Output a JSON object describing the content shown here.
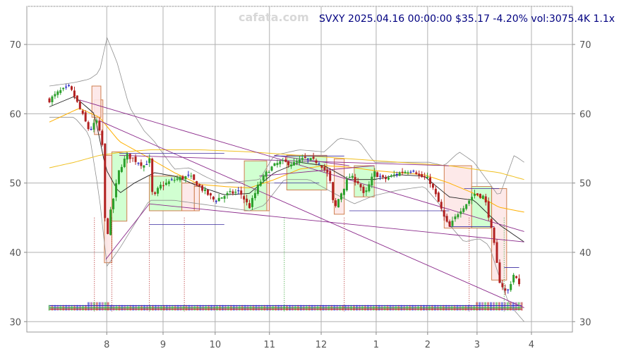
{
  "chart_data": {
    "type": "candlestick",
    "title": "SVXY 2025.04.16 00:00:00 $35.17 -4.20% vol:3075.4K 1.1x",
    "watermark": "cafata.com",
    "ylim": [
      28.5,
      75.5
    ],
    "y_ticks": [
      30,
      40,
      50,
      60,
      70
    ],
    "y_tick_labels": [
      "30",
      "40",
      "50",
      "60",
      "70"
    ],
    "x_ticks": [
      {
        "label": "8",
        "pos": 0.1465
      },
      {
        "label": "9",
        "pos": 0.2497
      },
      {
        "label": "10",
        "pos": 0.3452
      },
      {
        "label": "11",
        "pos": 0.4447
      },
      {
        "label": "12",
        "pos": 0.5395
      },
      {
        "label": "1",
        "pos": 0.6403
      },
      {
        "label": "2",
        "pos": 0.7346
      },
      {
        "label": "3",
        "pos": 0.8252
      },
      {
        "label": "4",
        "pos": 0.9249
      }
    ],
    "close_anchors": [
      [
        0,
        62.0
      ],
      [
        0.02,
        63.2
      ],
      [
        0.04,
        63.8
      ],
      [
        0.05,
        62.5
      ],
      [
        0.065,
        60.0
      ],
      [
        0.08,
        57.5
      ],
      [
        0.095,
        59.0
      ],
      [
        0.107,
        55.0
      ],
      [
        0.113,
        40.5
      ],
      [
        0.12,
        45.0
      ],
      [
        0.14,
        52.0
      ],
      [
        0.155,
        54.0
      ],
      [
        0.19,
        52.5
      ],
      [
        0.2,
        53.5
      ],
      [
        0.207,
        47.5
      ],
      [
        0.22,
        49.5
      ],
      [
        0.25,
        50.5
      ],
      [
        0.28,
        51.0
      ],
      [
        0.3,
        49.5
      ],
      [
        0.33,
        47.5
      ],
      [
        0.36,
        48.5
      ],
      [
        0.38,
        48.8
      ],
      [
        0.4,
        46.5
      ],
      [
        0.42,
        50.0
      ],
      [
        0.44,
        52.0
      ],
      [
        0.46,
        53.0
      ],
      [
        0.49,
        52.8
      ],
      [
        0.51,
        53.5
      ],
      [
        0.54,
        53.0
      ],
      [
        0.56,
        51.0
      ],
      [
        0.57,
        46.0
      ],
      [
        0.58,
        48.0
      ],
      [
        0.6,
        51.0
      ],
      [
        0.62,
        50.0
      ],
      [
        0.63,
        48.0
      ],
      [
        0.65,
        51.5
      ],
      [
        0.67,
        50.5
      ],
      [
        0.7,
        51.5
      ],
      [
        0.73,
        52.0
      ],
      [
        0.74,
        51.0
      ],
      [
        0.76,
        50.5
      ],
      [
        0.78,
        47.0
      ],
      [
        0.79,
        45.0
      ],
      [
        0.8,
        43.5
      ],
      [
        0.82,
        46.0
      ],
      [
        0.84,
        47.5
      ],
      [
        0.85,
        48.5
      ],
      [
        0.87,
        48.0
      ],
      [
        0.88,
        45.0
      ],
      [
        0.89,
        41.0
      ],
      [
        0.9,
        36.0
      ],
      [
        0.915,
        34.0
      ],
      [
        0.93,
        37.0
      ],
      [
        0.94,
        35.17
      ]
    ],
    "ma_fast_anchors": [
      [
        0,
        61.0
      ],
      [
        0.05,
        62.5
      ],
      [
        0.09,
        60.0
      ],
      [
        0.113,
        52.0
      ],
      [
        0.14,
        48.5
      ],
      [
        0.17,
        50.0
      ],
      [
        0.21,
        51.5
      ],
      [
        0.25,
        51.0
      ],
      [
        0.3,
        49.5
      ],
      [
        0.35,
        48.3
      ],
      [
        0.4,
        48.5
      ],
      [
        0.45,
        51.5
      ],
      [
        0.5,
        53.0
      ],
      [
        0.55,
        52.5
      ],
      [
        0.6,
        50.5
      ],
      [
        0.65,
        50.5
      ],
      [
        0.7,
        51.2
      ],
      [
        0.75,
        51.0
      ],
      [
        0.8,
        48.0
      ],
      [
        0.85,
        47.5
      ],
      [
        0.9,
        44.0
      ],
      [
        0.95,
        41.5
      ]
    ],
    "ma_mid_anchors": [
      [
        0,
        58.8
      ],
      [
        0.06,
        60.8
      ],
      [
        0.1,
        59.5
      ],
      [
        0.14,
        56.0
      ],
      [
        0.19,
        54.0
      ],
      [
        0.25,
        51.5
      ],
      [
        0.3,
        49.8
      ],
      [
        0.35,
        49.5
      ],
      [
        0.4,
        49.3
      ],
      [
        0.45,
        50.5
      ],
      [
        0.5,
        52.0
      ],
      [
        0.55,
        52.5
      ],
      [
        0.6,
        52.3
      ],
      [
        0.65,
        51.8
      ],
      [
        0.7,
        51.5
      ],
      [
        0.75,
        51.2
      ],
      [
        0.8,
        50.0
      ],
      [
        0.85,
        48.5
      ],
      [
        0.9,
        46.5
      ],
      [
        0.95,
        45.8
      ]
    ],
    "ma_slow_anchors": [
      [
        0,
        52.2
      ],
      [
        0.05,
        53.0
      ],
      [
        0.1,
        54.0
      ],
      [
        0.15,
        54.5
      ],
      [
        0.2,
        54.8
      ],
      [
        0.3,
        54.8
      ],
      [
        0.4,
        54.5
      ],
      [
        0.5,
        54.0
      ],
      [
        0.6,
        53.5
      ],
      [
        0.7,
        53.0
      ],
      [
        0.8,
        52.5
      ],
      [
        0.9,
        51.5
      ],
      [
        0.95,
        50.5
      ]
    ],
    "band_upper_anchors": [
      [
        0,
        64.0
      ],
      [
        0.05,
        64.5
      ],
      [
        0.08,
        65.0
      ],
      [
        0.1,
        66.0
      ],
      [
        0.115,
        71.0
      ],
      [
        0.135,
        67.5
      ],
      [
        0.16,
        61.0
      ],
      [
        0.19,
        57.5
      ],
      [
        0.21,
        56.0
      ],
      [
        0.23,
        54.0
      ],
      [
        0.25,
        52.0
      ],
      [
        0.28,
        52.2
      ],
      [
        0.31,
        51.0
      ],
      [
        0.34,
        50.0
      ],
      [
        0.38,
        50.2
      ],
      [
        0.42,
        50.5
      ],
      [
        0.45,
        54.0
      ],
      [
        0.5,
        54.8
      ],
      [
        0.55,
        54.5
      ],
      [
        0.58,
        56.5
      ],
      [
        0.62,
        56.0
      ],
      [
        0.65,
        53.0
      ],
      [
        0.7,
        53.0
      ],
      [
        0.76,
        53.0
      ],
      [
        0.79,
        52.5
      ],
      [
        0.82,
        54.5
      ],
      [
        0.85,
        53.0
      ],
      [
        0.88,
        50.0
      ],
      [
        0.9,
        48.0
      ],
      [
        0.93,
        54.0
      ],
      [
        0.95,
        53.0
      ]
    ],
    "band_lower_anchors": [
      [
        0,
        59.5
      ],
      [
        0.05,
        59.5
      ],
      [
        0.08,
        57.0
      ],
      [
        0.1,
        48.0
      ],
      [
        0.115,
        38.0
      ],
      [
        0.14,
        40.5
      ],
      [
        0.17,
        44.0
      ],
      [
        0.2,
        47.5
      ],
      [
        0.25,
        47.5
      ],
      [
        0.3,
        47.0
      ],
      [
        0.35,
        46.5
      ],
      [
        0.4,
        46.0
      ],
      [
        0.43,
        46.8
      ],
      [
        0.47,
        50.5
      ],
      [
        0.52,
        50.5
      ],
      [
        0.57,
        48.5
      ],
      [
        0.61,
        47.0
      ],
      [
        0.65,
        48.2
      ],
      [
        0.7,
        49.0
      ],
      [
        0.75,
        49.5
      ],
      [
        0.78,
        47.0
      ],
      [
        0.8,
        44.0
      ],
      [
        0.83,
        41.5
      ],
      [
        0.86,
        42.0
      ],
      [
        0.88,
        41.0
      ],
      [
        0.9,
        36.5
      ],
      [
        0.92,
        32.5
      ],
      [
        0.95,
        30.0
      ]
    ],
    "trend_lines": [
      [
        [
          0.06,
          62.0
        ],
        [
          0.95,
          43.0
        ]
      ],
      [
        [
          0.1,
          59.0
        ],
        [
          0.95,
          32.0
        ]
      ],
      [
        [
          0.113,
          39.0
        ],
        [
          0.2,
          47.0
        ]
      ],
      [
        [
          0.2,
          47.0
        ],
        [
          0.95,
          41.5
        ]
      ],
      [
        [
          0.14,
          54.0
        ],
        [
          0.8,
          52.5
        ]
      ],
      [
        [
          0.45,
          54.0
        ],
        [
          0.6,
          52.5
        ]
      ],
      [
        [
          0.42,
          51.0
        ],
        [
          0.65,
          52.5
        ]
      ]
    ],
    "flat_lines": [
      [
        [
          0.14,
          54.3
        ],
        [
          0.35,
          54.3
        ]
      ],
      [
        [
          0.2,
          44.0
        ],
        [
          0.35,
          44.0
        ]
      ],
      [
        [
          0.45,
          53.9
        ],
        [
          0.59,
          53.9
        ]
      ],
      [
        [
          0.6,
          46.0
        ],
        [
          0.8,
          46.0
        ]
      ],
      [
        [
          0.45,
          50.0
        ],
        [
          0.54,
          50.0
        ]
      ],
      [
        [
          0.83,
          49.2
        ],
        [
          0.9,
          49.2
        ]
      ],
      [
        [
          0.91,
          37.8
        ],
        [
          0.94,
          37.8
        ]
      ],
      [
        [
          0.8,
          43.7
        ],
        [
          0.89,
          43.7
        ]
      ]
    ],
    "boxes": [
      {
        "x0": 0.09,
        "x1": 0.107,
        "y0": 57.0,
        "y1": 62.0,
        "kind": "down"
      },
      {
        "x0": 0.085,
        "x1": 0.103,
        "y0": 59.5,
        "y1": 64.0,
        "kind": "down"
      },
      {
        "x0": 0.11,
        "x1": 0.125,
        "y0": 38.5,
        "y1": 54.0,
        "kind": "down"
      },
      {
        "x0": 0.125,
        "x1": 0.155,
        "y0": 44.5,
        "y1": 54.5,
        "kind": "up"
      },
      {
        "x0": 0.2,
        "x1": 0.265,
        "y0": 46.0,
        "y1": 51.0,
        "kind": "up"
      },
      {
        "x0": 0.265,
        "x1": 0.29,
        "y0": 46.0,
        "y1": 50.0,
        "kind": "down"
      },
      {
        "x0": 0.29,
        "x1": 0.3,
        "y0": 46.0,
        "y1": 49.5,
        "kind": "down"
      },
      {
        "x0": 0.39,
        "x1": 0.435,
        "y0": 46.0,
        "y1": 53.2,
        "kind": "up"
      },
      {
        "x0": 0.435,
        "x1": 0.44,
        "y0": 46.0,
        "y1": 50.0,
        "kind": "down"
      },
      {
        "x0": 0.475,
        "x1": 0.555,
        "y0": 49.0,
        "y1": 54.0,
        "kind": "up"
      },
      {
        "x0": 0.57,
        "x1": 0.59,
        "y0": 45.5,
        "y1": 53.5,
        "kind": "down"
      },
      {
        "x0": 0.61,
        "x1": 0.65,
        "y0": 48.0,
        "y1": 52.5,
        "kind": "up"
      },
      {
        "x0": 0.79,
        "x1": 0.845,
        "y0": 43.5,
        "y1": 52.5,
        "kind": "down"
      },
      {
        "x0": 0.845,
        "x1": 0.885,
        "y0": 43.5,
        "y1": 49.5,
        "kind": "up"
      },
      {
        "x0": 0.885,
        "x1": 0.915,
        "y0": 36.0,
        "y1": 49.2,
        "kind": "down"
      }
    ],
    "event_marks": [
      {
        "x": 0.09,
        "kind": "down"
      },
      {
        "x": 0.125,
        "kind": "down"
      },
      {
        "x": 0.2,
        "kind": "down"
      },
      {
        "x": 0.27,
        "kind": "down"
      },
      {
        "x": 0.47,
        "kind": "up"
      },
      {
        "x": 0.59,
        "kind": "down"
      },
      {
        "x": 0.84,
        "kind": "down"
      },
      {
        "x": 0.91,
        "kind": "up"
      }
    ],
    "colors": {
      "up_candle": "#2ca02c",
      "down_candle": "#b22222",
      "doji_candle": "#2020c0",
      "ma_fast": "#222222",
      "ma_mid": "#ffb000",
      "ma_slow": "#f0c020",
      "band": "#909090",
      "trend": "#8b2a8b",
      "flat": "#3a2aa0",
      "title": "#000080",
      "watermark": "#d8d8d8",
      "grid": "#b0b0b0",
      "frame": "#888888",
      "up_box_fill": "#ccffcc",
      "down_box_fill": "#fde7e7",
      "box_edge": "#d08050"
    }
  }
}
